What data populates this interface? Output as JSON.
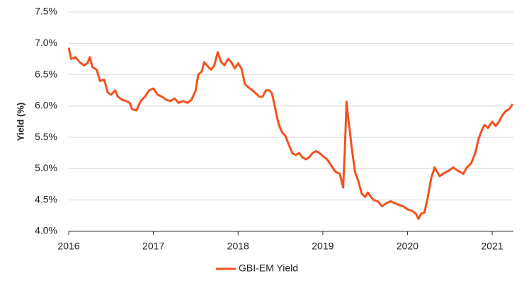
{
  "chart_data": {
    "type": "line",
    "y_label": "Yield (%)",
    "x": [
      2016.0,
      2016.03,
      2016.08,
      2016.13,
      2016.18,
      2016.22,
      2016.25,
      2016.28,
      2016.33,
      2016.37,
      2016.42,
      2016.46,
      2016.5,
      2016.55,
      2016.58,
      2016.63,
      2016.68,
      2016.72,
      2016.75,
      2016.8,
      2016.85,
      2016.9,
      2016.95,
      2017.0,
      2017.05,
      2017.1,
      2017.15,
      2017.2,
      2017.25,
      2017.3,
      2017.35,
      2017.4,
      2017.45,
      2017.5,
      2017.53,
      2017.57,
      2017.6,
      2017.65,
      2017.68,
      2017.72,
      2017.76,
      2017.8,
      2017.84,
      2017.88,
      2017.92,
      2017.96,
      2018.0,
      2018.04,
      2018.08,
      2018.12,
      2018.17,
      2018.21,
      2018.25,
      2018.29,
      2018.33,
      2018.37,
      2018.4,
      2018.44,
      2018.48,
      2018.52,
      2018.56,
      2018.6,
      2018.64,
      2018.68,
      2018.72,
      2018.76,
      2018.8,
      2018.84,
      2018.88,
      2018.92,
      2018.96,
      2019.0,
      2019.05,
      2019.1,
      2019.15,
      2019.2,
      2019.24,
      2019.26,
      2019.28,
      2019.3,
      2019.32,
      2019.34,
      2019.38,
      2019.42,
      2019.46,
      2019.5,
      2019.53,
      2019.57,
      2019.6,
      2019.65,
      2019.7,
      2019.75,
      2019.8,
      2019.85,
      2019.9,
      2019.95,
      2020.0,
      2020.05,
      2020.1,
      2020.13,
      2020.16,
      2020.2,
      2020.24,
      2020.28,
      2020.32,
      2020.35,
      2020.38,
      2020.42,
      2020.46,
      2020.5,
      2020.54,
      2020.58,
      2020.62,
      2020.66,
      2020.7,
      2020.75,
      2020.8,
      2020.84,
      2020.88,
      2020.91,
      2020.95,
      2021.0,
      2021.04,
      2021.08,
      2021.12,
      2021.16,
      2021.2,
      2021.24
    ],
    "series": [
      {
        "name": "GBI-EM Yield",
        "color": "#f4511e",
        "values": [
          6.93,
          6.75,
          6.78,
          6.7,
          6.65,
          6.68,
          6.78,
          6.62,
          6.58,
          6.4,
          6.42,
          6.22,
          6.18,
          6.25,
          6.15,
          6.1,
          6.08,
          6.05,
          5.95,
          5.93,
          6.08,
          6.15,
          6.25,
          6.28,
          6.18,
          6.15,
          6.1,
          6.08,
          6.12,
          6.05,
          6.08,
          6.05,
          6.1,
          6.25,
          6.5,
          6.55,
          6.7,
          6.62,
          6.58,
          6.65,
          6.86,
          6.7,
          6.65,
          6.75,
          6.7,
          6.6,
          6.68,
          6.6,
          6.35,
          6.3,
          6.25,
          6.2,
          6.15,
          6.15,
          6.25,
          6.25,
          6.2,
          5.95,
          5.7,
          5.58,
          5.52,
          5.38,
          5.25,
          5.22,
          5.25,
          5.18,
          5.15,
          5.18,
          5.25,
          5.28,
          5.25,
          5.2,
          5.15,
          5.05,
          4.95,
          4.92,
          4.7,
          5.3,
          6.07,
          5.8,
          5.6,
          5.35,
          4.95,
          4.8,
          4.6,
          4.55,
          4.62,
          4.55,
          4.5,
          4.48,
          4.4,
          4.45,
          4.48,
          4.45,
          4.42,
          4.4,
          4.35,
          4.33,
          4.28,
          4.2,
          4.28,
          4.3,
          4.55,
          4.85,
          5.02,
          4.95,
          4.88,
          4.92,
          4.95,
          4.98,
          5.02,
          4.98,
          4.95,
          4.92,
          5.02,
          5.08,
          5.25,
          5.48,
          5.62,
          5.7,
          5.65,
          5.75,
          5.68,
          5.75,
          5.85,
          5.92,
          5.95,
          6.03
        ]
      }
    ],
    "xlim": [
      2016,
      2021.25
    ],
    "xticks": [
      2016,
      2017,
      2018,
      2019,
      2020,
      2021
    ],
    "ylim": [
      4.0,
      7.5
    ],
    "yticks": [
      {
        "value": 4.0,
        "label": "4.0%"
      },
      {
        "value": 4.5,
        "label": "4.5%"
      },
      {
        "value": 5.0,
        "label": "5.0%"
      },
      {
        "value": 5.5,
        "label": "5.5%"
      },
      {
        "value": 6.0,
        "label": "6.0%"
      },
      {
        "value": 6.5,
        "label": "6.5%"
      },
      {
        "value": 7.0,
        "label": "7.0%"
      },
      {
        "value": 7.5,
        "label": "7.5%"
      }
    ],
    "grid": true,
    "legend": "bottom"
  }
}
